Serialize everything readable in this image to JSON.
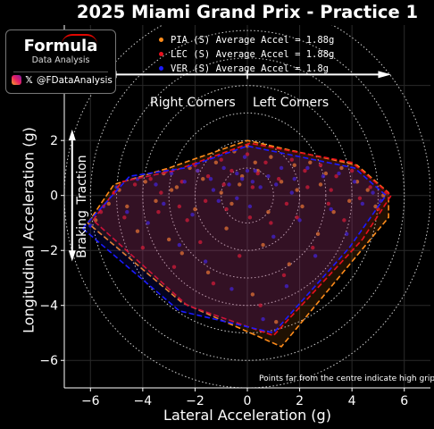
{
  "title": "2025 Miami Grand Prix - Practice 1",
  "logo": {
    "wordmark": "Formula",
    "subtitle": "Data Analysis",
    "handle": "@FDataAnalysis",
    "icons": [
      "instagram-icon",
      "x-icon"
    ]
  },
  "legend": [
    {
      "label": "PIA (S) Average Accel = 1.88g",
      "color": "#ff8c1a"
    },
    {
      "label": "LEC (S) Average Accel = 1.88g",
      "color": "#e8101e"
    },
    {
      "label": "VER (S) Average Accel = 1.8g",
      "color": "#1a1aff"
    }
  ],
  "annotations": {
    "right_corners": "Right Corners",
    "left_corners": "Left Corners",
    "traction": "Traction",
    "braking": "Braking",
    "note": "Points far from the centre indicate high grip"
  },
  "chart_data": {
    "type": "scatter",
    "title": "2025 Miami Grand Prix - Practice 1",
    "xlabel": "Lateral Acceleration (g)",
    "ylabel": "Longitudinal Acceleration (g)",
    "xlim": [
      -7,
      7
    ],
    "ylim": [
      -7,
      6.2
    ],
    "xticks": [
      -6,
      -4,
      -2,
      0,
      2,
      4,
      6
    ],
    "yticks": [
      -6,
      -4,
      -2,
      0,
      2,
      4
    ],
    "grid": true,
    "reference_circles_radius": [
      1,
      2,
      3,
      4,
      5,
      6,
      7
    ],
    "series": [
      {
        "name": "PIA (S) Average Accel = 1.88g",
        "color": "#ff8c1a",
        "hull": [
          [
            -6.1,
            -1.0
          ],
          [
            -5.1,
            0.4
          ],
          [
            -3.0,
            1.0
          ],
          [
            0.0,
            2.0
          ],
          [
            4.2,
            1.1
          ],
          [
            5.4,
            0.1
          ],
          [
            5.4,
            -0.8
          ],
          [
            1.3,
            -5.5
          ],
          [
            -2.5,
            -3.9
          ]
        ],
        "points": [
          [
            -5.8,
            -0.9
          ],
          [
            -5.3,
            -0.3
          ],
          [
            -4.9,
            0.2
          ],
          [
            -4.6,
            -0.4
          ],
          [
            -4.2,
            -1.3
          ],
          [
            -3.9,
            0.5
          ],
          [
            -3.5,
            -0.2
          ],
          [
            -3.2,
            0.8
          ],
          [
            -3.0,
            -1.6
          ],
          [
            -2.7,
            0.3
          ],
          [
            -2.5,
            -2.1
          ],
          [
            -2.2,
            1.0
          ],
          [
            -2.0,
            -0.5
          ],
          [
            -1.7,
            0.6
          ],
          [
            -1.5,
            -2.8
          ],
          [
            -1.2,
            1.2
          ],
          [
            -1.0,
            0.1
          ],
          [
            -0.8,
            -1.2
          ],
          [
            -0.5,
            1.6
          ],
          [
            -0.3,
            0.4
          ],
          [
            0.0,
            1.8
          ],
          [
            0.2,
            -3.6
          ],
          [
            0.4,
            0.9
          ],
          [
            0.6,
            -1.8
          ],
          [
            0.9,
            1.4
          ],
          [
            1.1,
            -4.6
          ],
          [
            1.3,
            0.5
          ],
          [
            1.6,
            -2.5
          ],
          [
            1.8,
            1.1
          ],
          [
            2.1,
            -0.4
          ],
          [
            2.4,
            1.2
          ],
          [
            2.7,
            -1.4
          ],
          [
            3.0,
            0.8
          ],
          [
            3.3,
            -0.6
          ],
          [
            3.6,
            1.0
          ],
          [
            3.9,
            -0.2
          ],
          [
            4.2,
            0.5
          ],
          [
            4.6,
            0.2
          ],
          [
            4.9,
            -0.4
          ],
          [
            5.2,
            0.0
          ],
          [
            0.8,
            -0.6
          ],
          [
            -0.6,
            -0.3
          ],
          [
            1.9,
            0.2
          ],
          [
            -1.9,
            0.9
          ],
          [
            2.8,
            0.4
          ],
          [
            -2.9,
            0.2
          ],
          [
            0.3,
            1.2
          ],
          [
            -0.2,
            0.7
          ]
        ]
      },
      {
        "name": "LEC (S) Average Accel = 1.88g",
        "color": "#e8101e",
        "hull": [
          [
            -5.9,
            -0.9
          ],
          [
            -4.8,
            0.5
          ],
          [
            -2.8,
            0.9
          ],
          [
            0.1,
            1.9
          ],
          [
            4.0,
            1.2
          ],
          [
            5.5,
            0.0
          ],
          [
            4.4,
            -1.6
          ],
          [
            1.0,
            -5.1
          ],
          [
            -2.3,
            -4.0
          ]
        ],
        "points": [
          [
            -5.6,
            -0.6
          ],
          [
            -5.1,
            0.1
          ],
          [
            -4.7,
            -0.8
          ],
          [
            -4.3,
            0.4
          ],
          [
            -4.0,
            -1.9
          ],
          [
            -3.7,
            0.6
          ],
          [
            -3.4,
            -0.6
          ],
          [
            -3.1,
            0.9
          ],
          [
            -2.8,
            -2.6
          ],
          [
            -2.5,
            0.5
          ],
          [
            -2.3,
            -0.9
          ],
          [
            -2.0,
            1.1
          ],
          [
            -1.8,
            -1.7
          ],
          [
            -1.5,
            0.7
          ],
          [
            -1.3,
            -3.2
          ],
          [
            -1.0,
            1.3
          ],
          [
            -0.8,
            -0.5
          ],
          [
            -0.6,
            0.9
          ],
          [
            -0.3,
            -2.2
          ],
          [
            0.0,
            1.5
          ],
          [
            0.2,
            0.3
          ],
          [
            0.5,
            -4.0
          ],
          [
            0.7,
            1.2
          ],
          [
            0.9,
            -1.0
          ],
          [
            1.2,
            0.6
          ],
          [
            1.4,
            -2.9
          ],
          [
            1.7,
            1.3
          ],
          [
            1.9,
            -0.8
          ],
          [
            2.2,
            0.9
          ],
          [
            2.5,
            -1.9
          ],
          [
            2.8,
            1.1
          ],
          [
            3.1,
            -0.3
          ],
          [
            3.4,
            0.7
          ],
          [
            3.7,
            -0.9
          ],
          [
            4.0,
            0.9
          ],
          [
            4.3,
            -0.1
          ],
          [
            4.7,
            0.3
          ],
          [
            5.0,
            -0.5
          ],
          [
            5.3,
            0.1
          ],
          [
            0.4,
            0.8
          ],
          [
            -0.9,
            0.4
          ],
          [
            1.5,
            -0.3
          ],
          [
            -1.6,
            -0.2
          ],
          [
            2.3,
            0.3
          ],
          [
            -2.6,
            -0.4
          ],
          [
            0.1,
            -0.8
          ],
          [
            3.2,
            0.2
          ],
          [
            -3.3,
            0.1
          ]
        ]
      },
      {
        "name": "VER (S) Average Accel = 1.8g",
        "color": "#1a1aff",
        "hull": [
          [
            -6.3,
            -1.2
          ],
          [
            -4.5,
            0.7
          ],
          [
            -2.4,
            1.0
          ],
          [
            0.0,
            1.8
          ],
          [
            4.1,
            1.0
          ],
          [
            5.3,
            0.0
          ],
          [
            3.9,
            -1.9
          ],
          [
            1.0,
            -5.0
          ],
          [
            -2.6,
            -4.2
          ]
        ],
        "points": [
          [
            -6.0,
            -1.1
          ],
          [
            -5.5,
            -0.4
          ],
          [
            -5.0,
            0.3
          ],
          [
            -4.6,
            -0.6
          ],
          [
            -4.2,
            0.6
          ],
          [
            -3.8,
            -1.0
          ],
          [
            -3.5,
            0.4
          ],
          [
            -3.2,
            -0.3
          ],
          [
            -2.9,
            0.8
          ],
          [
            -2.6,
            -1.8
          ],
          [
            -2.4,
            0.5
          ],
          [
            -2.1,
            -0.7
          ],
          [
            -1.9,
            0.9
          ],
          [
            -1.6,
            -2.4
          ],
          [
            -1.4,
            0.6
          ],
          [
            -1.1,
            -0.2
          ],
          [
            -0.9,
            1.0
          ],
          [
            -0.6,
            -3.4
          ],
          [
            -0.4,
            0.8
          ],
          [
            -0.1,
            1.4
          ],
          [
            0.1,
            -0.4
          ],
          [
            0.3,
            0.9
          ],
          [
            0.6,
            -4.5
          ],
          [
            0.8,
            0.7
          ],
          [
            1.0,
            -1.5
          ],
          [
            1.3,
            1.0
          ],
          [
            1.5,
            -3.3
          ],
          [
            1.8,
            0.6
          ],
          [
            2.0,
            -0.9
          ],
          [
            2.3,
            1.0
          ],
          [
            2.6,
            -2.2
          ],
          [
            2.9,
            0.7
          ],
          [
            3.2,
            -0.5
          ],
          [
            3.5,
            0.8
          ],
          [
            3.8,
            -1.4
          ],
          [
            4.1,
            0.5
          ],
          [
            4.4,
            -0.3
          ],
          [
            4.8,
            0.1
          ],
          [
            5.1,
            -0.2
          ],
          [
            -0.2,
            0.6
          ],
          [
            0.5,
            0.3
          ],
          [
            -0.7,
            0.4
          ],
          [
            1.1,
            0.4
          ],
          [
            -1.3,
            0.2
          ],
          [
            0.0,
            0.9
          ],
          [
            -0.4,
            -0.1
          ],
          [
            0.2,
            0.5
          ],
          [
            1.7,
            0.1
          ]
        ]
      }
    ]
  }
}
